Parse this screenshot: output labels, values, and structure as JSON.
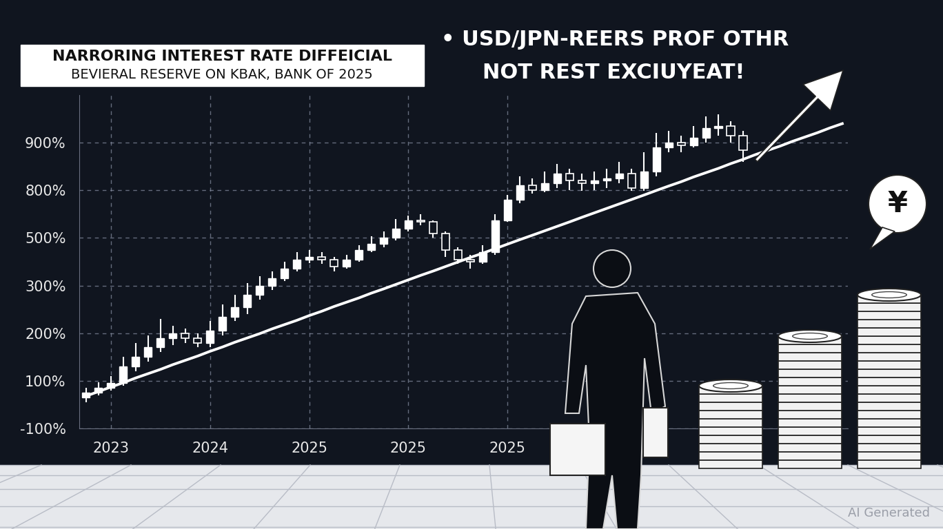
{
  "chart_data": {
    "type": "candlestick",
    "title": "NARRORING INTEREST RATE DIFFEICIAL",
    "subtitle": "BEVIERAL RESERVE ON KBAK, BANK OF 2025",
    "annotations": [
      "• USD/JPN-REERS PROF OTHR",
      "NOT REST EXCIUYEAT!",
      "¥",
      "AI Generated"
    ],
    "categories": [
      null,
      null,
      "2023",
      null,
      null,
      null,
      null,
      null,
      null,
      null,
      "2024",
      null,
      null,
      null,
      null,
      null,
      null,
      null,
      "2025",
      null,
      null,
      null,
      null,
      null,
      null,
      null,
      "2025",
      null,
      null,
      null,
      null,
      null,
      null,
      null,
      "2025",
      null,
      null,
      null,
      null,
      null,
      null,
      null,
      null,
      null,
      null,
      null,
      null,
      null,
      null,
      null,
      null,
      null,
      null,
      null,
      null,
      null,
      null,
      null,
      null,
      null,
      null,
      null
    ],
    "ylim": [
      -100,
      1000
    ],
    "yticks": [
      {
        "value": -100,
        "label": "-100%"
      },
      {
        "value": 100,
        "label": "100%"
      },
      {
        "value": 200,
        "label": "200%"
      },
      {
        "value": 300,
        "label": "300%"
      },
      {
        "value": 500,
        "label": "500%"
      },
      {
        "value": 800,
        "label": "800%"
      },
      {
        "value": 900,
        "label": "900%"
      }
    ],
    "grid": true,
    "series": [
      {
        "type": "candlestick",
        "color": "#ffffff",
        "open": [
          30,
          50,
          70,
          90,
          130,
          150,
          170,
          190,
          200,
          190,
          180,
          205,
          235,
          255,
          280,
          300,
          330,
          370,
          410,
          420,
          410,
          380,
          410,
          450,
          475,
          500,
          560,
          610,
          600,
          530,
          450,
          410,
          400,
          440,
          610,
          740,
          810,
          800,
          815,
          835,
          820,
          815,
          820,
          825,
          835,
          805,
          840,
          890,
          900,
          895,
          910,
          930,
          935,
          915,
          null,
          null,
          null,
          null,
          null,
          null,
          null,
          null
        ],
        "high": [
          70,
          95,
          110,
          150,
          180,
          195,
          230,
          215,
          210,
          200,
          225,
          260,
          280,
          310,
          340,
          360,
          400,
          440,
          450,
          440,
          420,
          430,
          470,
          510,
          540,
          620,
          640,
          650,
          610,
          540,
          460,
          430,
          470,
          650,
          770,
          830,
          825,
          840,
          855,
          845,
          835,
          840,
          845,
          860,
          845,
          880,
          920,
          925,
          915,
          935,
          955,
          960,
          945,
          925,
          null,
          null,
          null,
          null,
          null,
          null,
          null,
          null
        ],
        "low": [
          10,
          40,
          60,
          80,
          120,
          140,
          160,
          175,
          180,
          170,
          170,
          195,
          225,
          240,
          270,
          290,
          320,
          360,
          395,
          390,
          360,
          370,
          400,
          440,
          460,
          490,
          540,
          580,
          500,
          420,
          390,
          370,
          390,
          430,
          600,
          720,
          780,
          790,
          805,
          800,
          795,
          800,
          805,
          815,
          795,
          795,
          830,
          880,
          880,
          890,
          900,
          915,
          900,
          860,
          null,
          null,
          null,
          null,
          null,
          null,
          null,
          null
        ],
        "close": [
          50,
          70,
          90,
          130,
          150,
          170,
          190,
          200,
          190,
          180,
          205,
          235,
          255,
          280,
          300,
          330,
          370,
          410,
          420,
          410,
          380,
          410,
          450,
          475,
          500,
          560,
          610,
          600,
          530,
          450,
          410,
          400,
          440,
          610,
          740,
          810,
          800,
          815,
          835,
          820,
          815,
          820,
          825,
          835,
          805,
          840,
          890,
          900,
          895,
          910,
          930,
          935,
          915,
          885,
          null,
          null,
          null,
          null,
          null,
          null,
          null,
          null
        ]
      },
      {
        "type": "line",
        "color": "#ffffff",
        "values": [
          36,
          55,
          74,
          92,
          106,
          115,
          124,
          134,
          143,
          152,
          162,
          171,
          181,
          190,
          199,
          209,
          218,
          227,
          237,
          246,
          256,
          265,
          274,
          284,
          293,
          305,
          324,
          343,
          361,
          380,
          399,
          418,
          436,
          455,
          474,
          493,
          517,
          545,
          573,
          601,
          630,
          658,
          686,
          714,
          742,
          770,
          799,
          809,
          818,
          828,
          837,
          846,
          856,
          865,
          875,
          884,
          893,
          903,
          912,
          921,
          931,
          940
        ]
      }
    ]
  }
}
